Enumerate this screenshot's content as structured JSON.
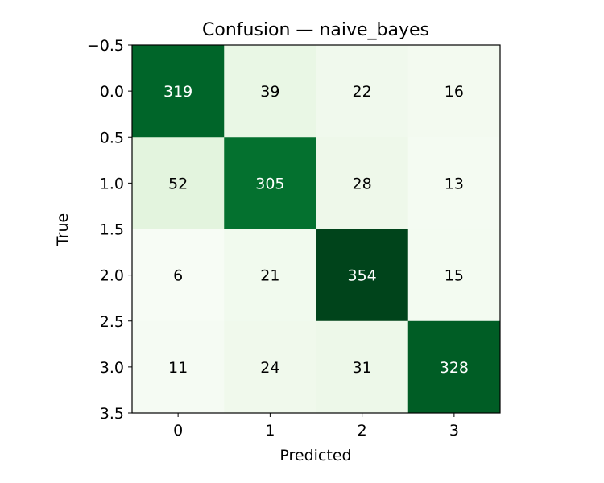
{
  "chart_data": {
    "type": "heatmap",
    "title": "Confusion — naive_bayes",
    "xlabel": "Predicted",
    "ylabel": "True",
    "x_ticks": [
      "0",
      "1",
      "2",
      "3"
    ],
    "y_ticks": [
      "−0.5",
      "0.0",
      "0.5",
      "1.0",
      "1.5",
      "2.0",
      "2.5",
      "3.0",
      "3.5"
    ],
    "ylim": [
      3.5,
      -0.5
    ],
    "xlim": [
      -0.5,
      3.5
    ],
    "colormap": "Greens",
    "matrix": [
      [
        319,
        39,
        22,
        16
      ],
      [
        52,
        305,
        28,
        13
      ],
      [
        6,
        21,
        354,
        15
      ],
      [
        11,
        24,
        31,
        328
      ]
    ],
    "grid": false,
    "legend": "none"
  }
}
